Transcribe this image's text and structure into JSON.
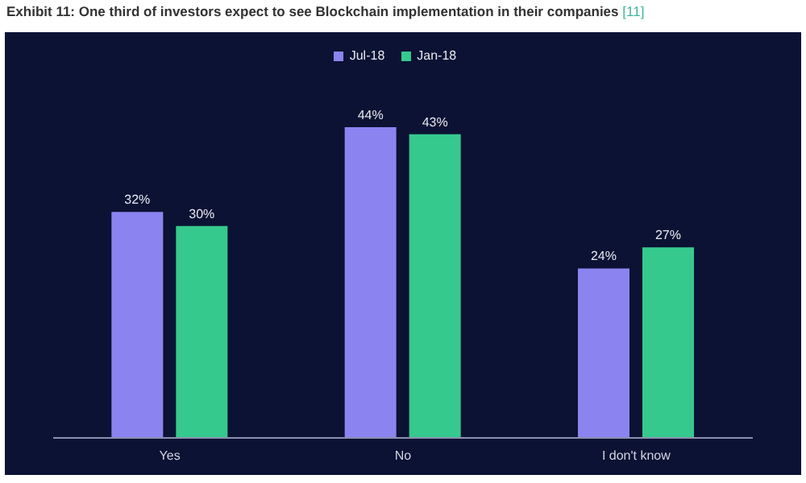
{
  "chart_data": {
    "type": "bar",
    "title": "Exhibit 11: One third of investors expect to see Blockchain implementation in their companies",
    "subtitle": "[11]",
    "categories": [
      "Yes",
      "No",
      "I don't know"
    ],
    "series": [
      {
        "name": "Jul-18",
        "color": "#8b84f0",
        "values": [
          32,
          44,
          24
        ],
        "value_labels": [
          "32%",
          "44%",
          "24%"
        ]
      },
      {
        "name": "Jan-18",
        "color": "#35c98e",
        "values": [
          30,
          43,
          27
        ],
        "value_labels": [
          "30%",
          "43%",
          "27%"
        ]
      }
    ],
    "legend": "top",
    "grid": false
  }
}
